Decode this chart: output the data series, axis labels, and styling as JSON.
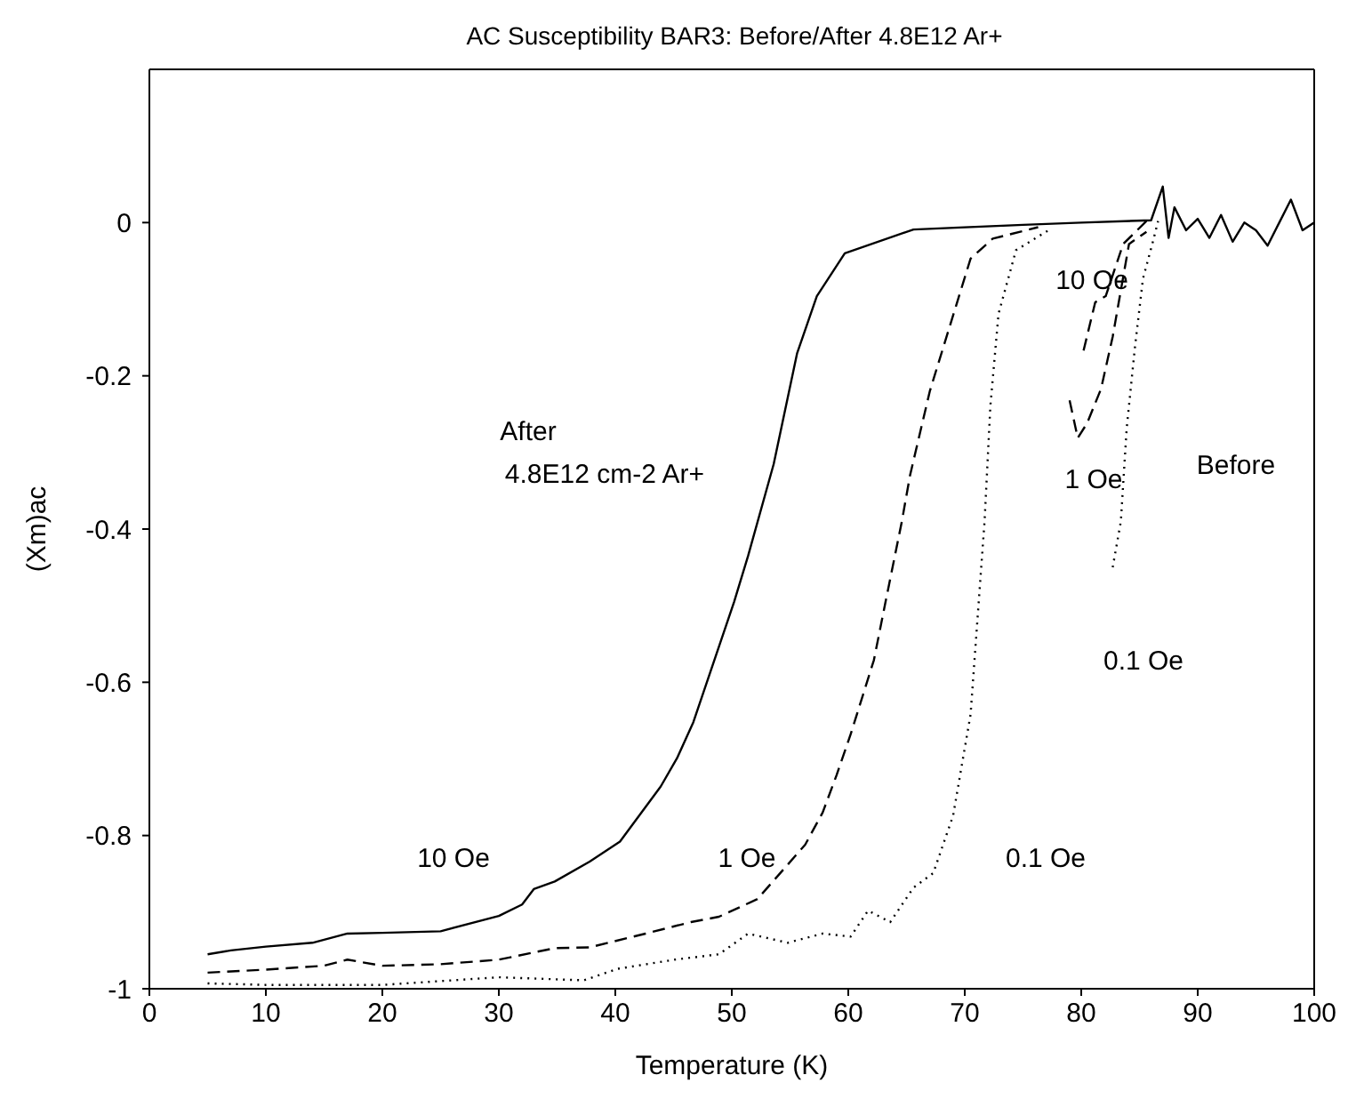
{
  "chart_data": {
    "type": "line",
    "title": "AC Susceptibility BAR3: Before/After 4.8E12 Ar+",
    "xlabel": "Temperature (K)",
    "ylabel": "(Xm)ac",
    "xlim": [
      0,
      100
    ],
    "xticks": [
      0,
      10,
      20,
      30,
      40,
      50,
      60,
      70,
      80,
      90,
      100
    ],
    "ylim": [
      -1,
      0.2
    ],
    "yticks": [
      -1,
      -0.8,
      -0.6,
      -0.4,
      -0.2,
      0
    ],
    "marker": "none",
    "series": [
      {
        "color": "#000000",
        "line_style": "solid",
        "x": [
          5,
          7,
          10,
          14,
          17,
          20,
          25,
          30,
          32,
          33,
          34.8,
          37.8,
          40.4,
          43.9,
          45.3,
          46.7,
          50.2,
          51.4,
          53.6,
          55.6,
          57.3,
          59.7,
          65.6,
          75,
          80,
          86,
          87,
          87.5,
          88,
          89,
          90,
          91,
          92,
          93,
          94,
          95,
          96,
          97,
          98,
          99,
          100
        ],
        "values": [
          -0.955,
          -0.95,
          -0.945,
          -0.94,
          -0.928,
          -0.927,
          -0.925,
          -0.905,
          -0.89,
          -0.87,
          -0.86,
          -0.834,
          -0.808,
          -0.736,
          -0.699,
          -0.652,
          -0.495,
          -0.435,
          -0.315,
          -0.171,
          -0.096,
          -0.04,
          -0.009,
          -0.003,
          0,
          0.003,
          0.047,
          -0.02,
          0.02,
          -0.01,
          0.005,
          -0.02,
          0.01,
          -0.025,
          0,
          -0.01,
          -0.03,
          0,
          0.03,
          -0.01,
          0
        ]
      },
      {
        "color": "#000000",
        "line_style": "dashed",
        "x": [
          5,
          10,
          15,
          17,
          20,
          25,
          30,
          34.8,
          37.8,
          42.6,
          46.5,
          48.9,
          52.2,
          56.3,
          57.8,
          59,
          60.2,
          62.2,
          63.2,
          64.6,
          65.3,
          67,
          70.5,
          72.4,
          76.3
        ],
        "values": [
          -0.979,
          -0.975,
          -0.97,
          -0.962,
          -0.97,
          -0.968,
          -0.962,
          -0.947,
          -0.946,
          -0.928,
          -0.913,
          -0.906,
          -0.883,
          -0.812,
          -0.77,
          -0.721,
          -0.668,
          -0.571,
          -0.495,
          -0.39,
          -0.33,
          -0.22,
          -0.047,
          -0.021,
          -0.006
        ]
      },
      {
        "color": "#000000",
        "line_style": "dotted",
        "x": [
          5,
          10,
          20,
          30,
          37.3,
          40.2,
          45.1,
          48.9,
          51.4,
          54.8,
          57.8,
          60.2,
          61.7,
          63.6,
          65.6,
          67.3,
          69,
          70.5,
          71.2,
          71.7,
          72.2,
          72.9,
          74.4,
          77.3
        ],
        "values": [
          -0.993,
          -0.995,
          -0.995,
          -0.985,
          -0.989,
          -0.974,
          -0.962,
          -0.955,
          -0.928,
          -0.94,
          -0.928,
          -0.932,
          -0.898,
          -0.913,
          -0.868,
          -0.849,
          -0.774,
          -0.642,
          -0.495,
          -0.39,
          -0.239,
          -0.119,
          -0.036,
          -0.009
        ]
      },
      {
        "color": "#000000",
        "line_style": "dashed",
        "x": [
          80.2,
          81.2,
          82.1,
          83.6,
          85.6
        ],
        "values": [
          -0.167,
          -0.104,
          -0.096,
          -0.028,
          0.002
        ]
      },
      {
        "color": "#000000",
        "line_style": "dashed",
        "x": [
          79,
          79.7,
          80.5,
          81.7,
          82.7,
          84.1,
          85.6
        ],
        "values": [
          -0.232,
          -0.281,
          -0.262,
          -0.217,
          -0.149,
          -0.028,
          -0.012
        ]
      },
      {
        "color": "#000000",
        "line_style": "dotted",
        "x": [
          82.7,
          83.4,
          83.9,
          84.6,
          85.3,
          86.1,
          86.6
        ],
        "values": [
          -0.45,
          -0.39,
          -0.269,
          -0.164,
          -0.073,
          -0.028,
          0.002
        ]
      }
    ],
    "annotations": [
      "After",
      "4.8E12 cm-2 Ar+",
      "10 Oe",
      "1 Oe",
      "Before",
      "0.1 Oe",
      "10 Oe",
      "1 Oe",
      "0.1 Oe"
    ]
  }
}
